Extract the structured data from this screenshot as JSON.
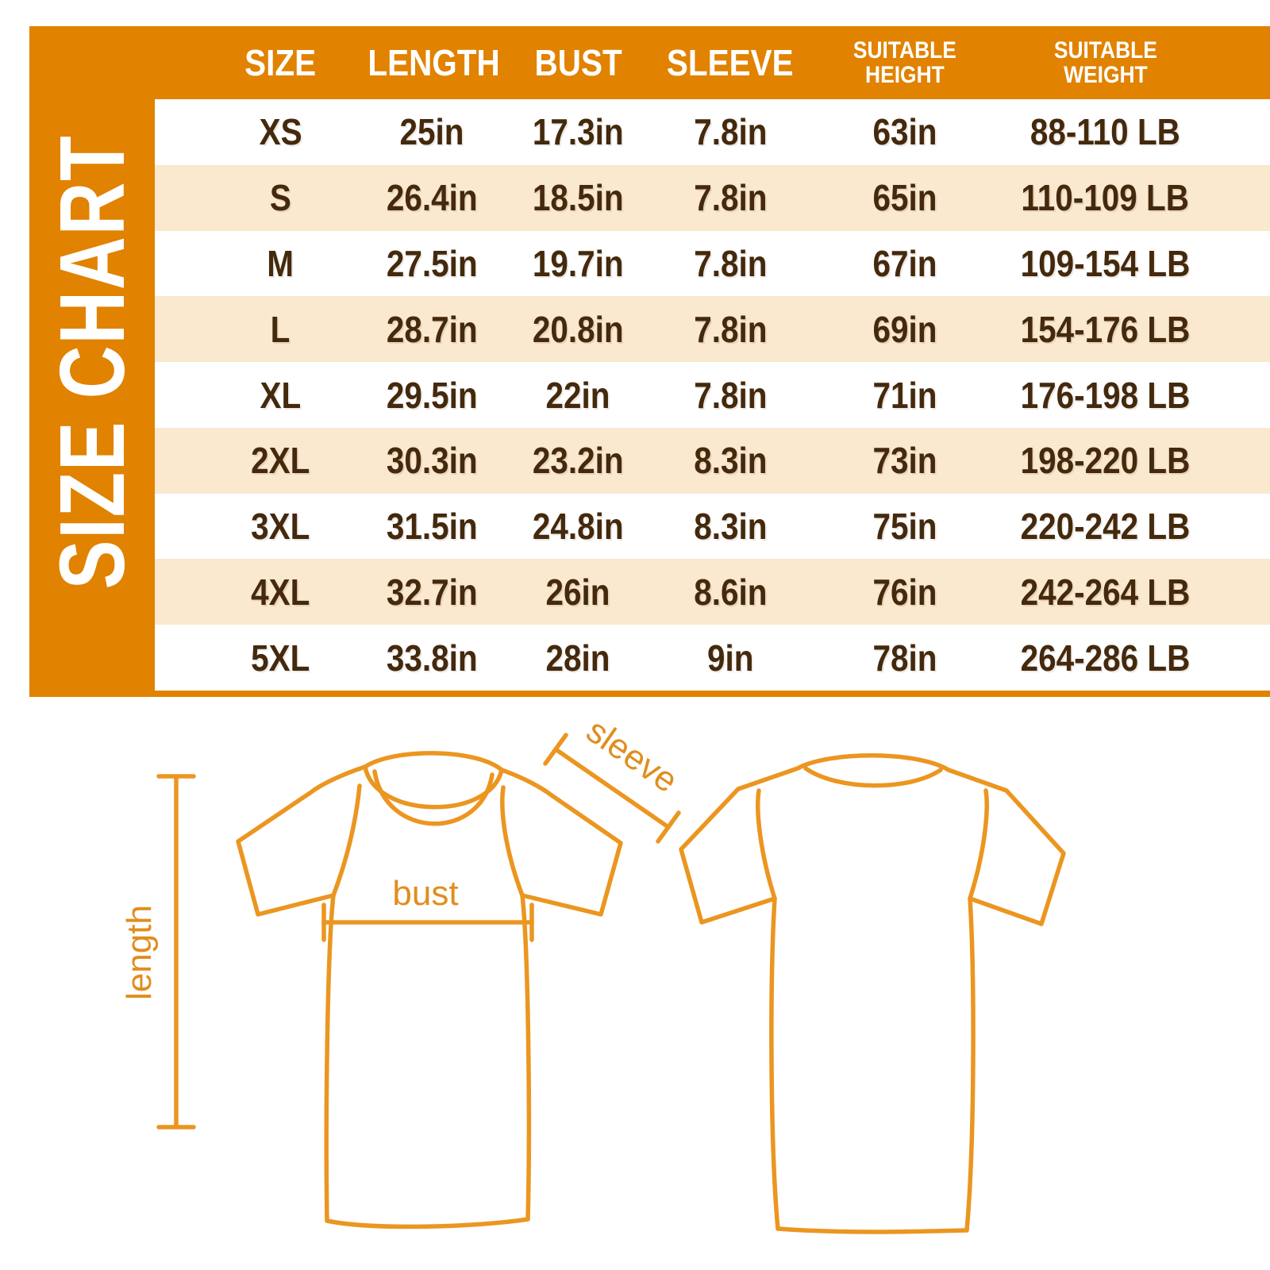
{
  "colors": {
    "frame_orange": "#E18200",
    "row_peach": "#FAE8CF",
    "row_white": "#FFFFFF",
    "value_text_brown": "#44290D",
    "header_text_white": "#FFFFFF",
    "diagram_orange": "#EB9620"
  },
  "size_chart": {
    "title": "SIZE CHART",
    "columns": [
      "SIZE",
      "LENGTH",
      "BUST",
      "SLEEVE",
      "SUITABLE\nHEIGHT",
      "SUITABLE\nWEIGHT"
    ],
    "rows": [
      [
        "XS",
        "25in",
        "17.3in",
        "7.8in",
        "63in",
        "88-110 LB"
      ],
      [
        "S",
        "26.4in",
        "18.5in",
        "7.8in",
        "65in",
        "110-109 LB"
      ],
      [
        "M",
        "27.5in",
        "19.7in",
        "7.8in",
        "67in",
        "109-154 LB"
      ],
      [
        "L",
        "28.7in",
        "20.8in",
        "7.8in",
        "69in",
        "154-176 LB"
      ],
      [
        "XL",
        "29.5in",
        "22in",
        "7.8in",
        "71in",
        "176-198 LB"
      ],
      [
        "2XL",
        "30.3in",
        "23.2in",
        "8.3in",
        "73in",
        "198-220 LB"
      ],
      [
        "3XL",
        "31.5in",
        "24.8in",
        "8.3in",
        "75in",
        "220-242 LB"
      ],
      [
        "4XL",
        "32.7in",
        "26in",
        "8.6in",
        "76in",
        "242-264 LB"
      ],
      [
        "5XL",
        "33.8in",
        "28in",
        "9in",
        "78in",
        "264-286 LB"
      ]
    ]
  },
  "diagram": {
    "labels": {
      "length": "length",
      "bust": "bust",
      "sleeve": "sleeve"
    }
  },
  "chart_data": {
    "type": "table",
    "title": "SIZE CHART",
    "columns": [
      "SIZE",
      "LENGTH",
      "BUST",
      "SLEEVE",
      "SUITABLE HEIGHT",
      "SUITABLE WEIGHT"
    ],
    "rows": [
      [
        "XS",
        "25in",
        "17.3in",
        "7.8in",
        "63in",
        "88-110 LB"
      ],
      [
        "S",
        "26.4in",
        "18.5in",
        "7.8in",
        "65in",
        "110-109 LB"
      ],
      [
        "M",
        "27.5in",
        "19.7in",
        "7.8in",
        "67in",
        "109-154 LB"
      ],
      [
        "L",
        "28.7in",
        "20.8in",
        "7.8in",
        "69in",
        "154-176 LB"
      ],
      [
        "XL",
        "29.5in",
        "22in",
        "7.8in",
        "71in",
        "176-198 LB"
      ],
      [
        "2XL",
        "30.3in",
        "23.2in",
        "8.3in",
        "73in",
        "198-220 LB"
      ],
      [
        "3XL",
        "31.5in",
        "24.8in",
        "8.3in",
        "75in",
        "220-242 LB"
      ],
      [
        "4XL",
        "32.7in",
        "26in",
        "8.6in",
        "76in",
        "242-264 LB"
      ],
      [
        "5XL",
        "33.8in",
        "28in",
        "9in",
        "78in",
        "264-286 LB"
      ]
    ],
    "annotations": [
      "length",
      "bust",
      "sleeve"
    ]
  }
}
